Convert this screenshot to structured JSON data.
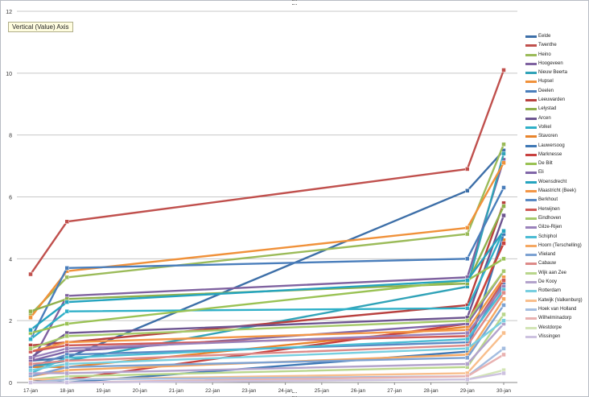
{
  "tooltip": "Vertical (Value) Axis",
  "chart_data": {
    "type": "line",
    "x": [
      "17-jan",
      "18-jan",
      "19-jan",
      "20-jan",
      "21-jan",
      "22-jan",
      "23-jan",
      "24-jan",
      "25-jan",
      "26-jan",
      "27-jan",
      "28-jan",
      "29-jan",
      "30-jan"
    ],
    "ylim": [
      0,
      12
    ],
    "yticks": [
      0,
      2,
      4,
      6,
      8,
      10,
      12
    ],
    "grid": true,
    "legend": "right",
    "series": [
      {
        "name": "Eelde",
        "color": "#3d6fa8",
        "y": [
          0.7,
          0.8,
          null,
          null,
          null,
          null,
          null,
          null,
          null,
          null,
          null,
          null,
          6.2,
          7.5
        ]
      },
      {
        "name": "Twenthe",
        "color": "#c0504d",
        "y": [
          3.5,
          5.2,
          null,
          null,
          null,
          null,
          null,
          null,
          null,
          null,
          null,
          null,
          6.9,
          10.1
        ]
      },
      {
        "name": "Heino",
        "color": "#9bbb59",
        "y": [
          2.2,
          3.4,
          null,
          null,
          null,
          null,
          null,
          null,
          null,
          null,
          null,
          null,
          4.8,
          7.7
        ]
      },
      {
        "name": "Hoogeveen",
        "color": "#7f62a0",
        "y": [
          0.6,
          2.8,
          null,
          null,
          null,
          null,
          null,
          null,
          null,
          null,
          null,
          null,
          3.4,
          7.2
        ]
      },
      {
        "name": "Nieuw Beerta",
        "color": "#31a3b8",
        "y": [
          0.5,
          0.7,
          null,
          null,
          null,
          null,
          null,
          null,
          null,
          null,
          null,
          null,
          3.1,
          7.4
        ]
      },
      {
        "name": "Hupsel",
        "color": "#f0913a",
        "y": [
          2.1,
          3.6,
          null,
          null,
          null,
          null,
          null,
          null,
          null,
          null,
          null,
          null,
          5.0,
          7.1
        ]
      },
      {
        "name": "Deelen",
        "color": "#4a7ebb",
        "y": [
          1.4,
          3.7,
          null,
          null,
          null,
          null,
          null,
          null,
          null,
          null,
          null,
          null,
          4.0,
          6.3
        ]
      },
      {
        "name": "Leeuwarden",
        "color": "#b8403e",
        "y": [
          1.2,
          1.3,
          null,
          null,
          null,
          null,
          null,
          null,
          null,
          null,
          null,
          null,
          2.5,
          5.8
        ]
      },
      {
        "name": "Lelystad",
        "color": "#8fb04c",
        "y": [
          2.3,
          2.7,
          null,
          null,
          null,
          null,
          null,
          null,
          null,
          null,
          null,
          null,
          3.2,
          5.7
        ]
      },
      {
        "name": "Arcen",
        "color": "#6d5591",
        "y": [
          0.8,
          1.6,
          null,
          null,
          null,
          null,
          null,
          null,
          null,
          null,
          null,
          null,
          2.1,
          5.4
        ]
      },
      {
        "name": "Volkel",
        "color": "#2fb0c8",
        "y": [
          1.4,
          2.3,
          null,
          null,
          null,
          null,
          null,
          null,
          null,
          null,
          null,
          null,
          2.4,
          4.9
        ]
      },
      {
        "name": "Stavoren",
        "color": "#e8842c",
        "y": [
          0.5,
          0.5,
          null,
          null,
          null,
          null,
          null,
          null,
          null,
          null,
          null,
          null,
          1.8,
          4.6
        ]
      },
      {
        "name": "Lauwersoog",
        "color": "#3f78b5",
        "y": [
          0.1,
          0.0,
          null,
          null,
          null,
          null,
          null,
          null,
          null,
          null,
          null,
          null,
          1.0,
          4.8
        ]
      },
      {
        "name": "Marknesse",
        "color": "#c8413f",
        "y": [
          0.1,
          0.1,
          null,
          null,
          null,
          null,
          null,
          null,
          null,
          null,
          null,
          null,
          1.9,
          4.5
        ]
      },
      {
        "name": "De Bilt",
        "color": "#9ac254",
        "y": [
          1.6,
          1.9,
          null,
          null,
          null,
          null,
          null,
          null,
          null,
          null,
          null,
          null,
          3.3,
          4.0
        ]
      },
      {
        "name": "Eli",
        "color": "#8066a8",
        "y": [
          0.7,
          1.0,
          null,
          null,
          null,
          null,
          null,
          null,
          null,
          null,
          null,
          null,
          1.9,
          3.6
        ]
      },
      {
        "name": "Woensdrecht",
        "color": "#25a4bf",
        "y": [
          1.7,
          2.6,
          null,
          null,
          null,
          null,
          null,
          null,
          null,
          null,
          null,
          null,
          3.3,
          4.9
        ]
      },
      {
        "name": "Maastricht (Beek)",
        "color": "#f39646",
        "y": [
          1.0,
          1.3,
          null,
          null,
          null,
          null,
          null,
          null,
          null,
          null,
          null,
          null,
          1.7,
          3.4
        ]
      },
      {
        "name": "Berkhout",
        "color": "#5b8ac4",
        "y": [
          0.5,
          0.9,
          null,
          null,
          null,
          null,
          null,
          null,
          null,
          null,
          null,
          null,
          1.3,
          3.2
        ]
      },
      {
        "name": "Herwijnen",
        "color": "#d05a57",
        "y": [
          1.0,
          1.2,
          null,
          null,
          null,
          null,
          null,
          null,
          null,
          null,
          null,
          null,
          1.5,
          3.3
        ]
      },
      {
        "name": "Eindhoven",
        "color": "#a6c96a",
        "y": [
          1.1,
          1.5,
          null,
          null,
          null,
          null,
          null,
          null,
          null,
          null,
          null,
          null,
          2.0,
          3.6
        ]
      },
      {
        "name": "Gilze-Rijen",
        "color": "#9a82bb",
        "y": [
          0.8,
          1.1,
          null,
          null,
          null,
          null,
          null,
          null,
          null,
          null,
          null,
          null,
          1.6,
          3.1
        ]
      },
      {
        "name": "Schiphol",
        "color": "#4cbcd4",
        "y": [
          0.3,
          0.8,
          null,
          null,
          null,
          null,
          null,
          null,
          null,
          null,
          null,
          null,
          1.4,
          3.0
        ]
      },
      {
        "name": "Hoorn (Terschelling)",
        "color": "#f5a862",
        "y": [
          0.2,
          0.4,
          null,
          null,
          null,
          null,
          null,
          null,
          null,
          null,
          null,
          null,
          0.9,
          2.7
        ]
      },
      {
        "name": "Vlieland",
        "color": "#7da2d2",
        "y": [
          0.2,
          0.5,
          null,
          null,
          null,
          null,
          null,
          null,
          null,
          null,
          null,
          null,
          0.8,
          2.5
        ]
      },
      {
        "name": "Cabauw",
        "color": "#dd8a88",
        "y": [
          0.6,
          0.7,
          null,
          null,
          null,
          null,
          null,
          null,
          null,
          null,
          null,
          null,
          1.2,
          2.9
        ]
      },
      {
        "name": "Wijk aan Zee",
        "color": "#b9d68c",
        "y": [
          0.1,
          0.2,
          null,
          null,
          null,
          null,
          null,
          null,
          null,
          null,
          null,
          null,
          0.5,
          2.2
        ]
      },
      {
        "name": "De Kooy",
        "color": "#b3a3cc",
        "y": [
          0.3,
          0.3,
          null,
          null,
          null,
          null,
          null,
          null,
          null,
          null,
          null,
          null,
          0.6,
          1.9
        ]
      },
      {
        "name": "Rotterdam",
        "color": "#78cfe0",
        "y": [
          0.4,
          0.6,
          null,
          null,
          null,
          null,
          null,
          null,
          null,
          null,
          null,
          null,
          1.1,
          2.0
        ]
      },
      {
        "name": "Katwijk (Valkenburg)",
        "color": "#f8be8c",
        "y": [
          0.1,
          0.1,
          null,
          null,
          null,
          null,
          null,
          null,
          null,
          null,
          null,
          null,
          0.3,
          1.6
        ]
      },
      {
        "name": "Hoek van Holland",
        "color": "#a4bde0",
        "y": [
          0.0,
          0.1,
          null,
          null,
          null,
          null,
          null,
          null,
          null,
          null,
          null,
          null,
          0.2,
          1.1
        ]
      },
      {
        "name": "Wilhelminadorp",
        "color": "#e8b1b0",
        "y": [
          0.0,
          0.0,
          null,
          null,
          null,
          null,
          null,
          null,
          null,
          null,
          null,
          null,
          0.2,
          0.9
        ]
      },
      {
        "name": "Westdorpe",
        "color": "#d3e5b6",
        "y": [
          0.0,
          0.0,
          null,
          null,
          null,
          null,
          null,
          null,
          null,
          null,
          null,
          null,
          0.1,
          0.4
        ]
      },
      {
        "name": "Vlissingen",
        "color": "#cdc2e0",
        "y": [
          0.0,
          0.0,
          null,
          null,
          null,
          null,
          null,
          null,
          null,
          null,
          null,
          null,
          0.1,
          0.3
        ]
      }
    ]
  }
}
